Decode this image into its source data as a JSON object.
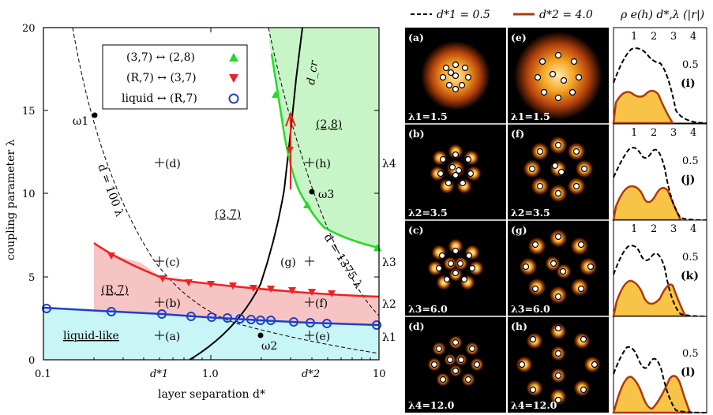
{
  "figure": {
    "phase_diagram": {
      "xlabel": "layer separation d*",
      "ylabel": "coupling parameter λ",
      "x_ticks": [
        "0.1",
        "1.0",
        "10"
      ],
      "x_marks": [
        "d*1",
        "d*2"
      ],
      "y_ticks": [
        "0",
        "5",
        "10",
        "15",
        "20"
      ],
      "right_lambdas": [
        "λ1",
        "λ2",
        "λ3",
        "λ4"
      ],
      "legend": [
        {
          "label": "(3,7) ↔ (2,8)",
          "color": "#22dd22",
          "marker": "triangle-up"
        },
        {
          "label": "(R,7) ↔ (3,7)",
          "color": "#ee2222",
          "marker": "triangle-down"
        },
        {
          "label": "liquid ↔ (R,7)",
          "color": "#1f3fcc",
          "marker": "circle"
        }
      ],
      "phase_labels": {
        "p28": "(2,8)",
        "p37": "(3,7)",
        "pR7": "(R,7)",
        "liquid": "liquid-like"
      },
      "curve_labels": {
        "d100": "d = 100 λ",
        "d1375": "d = 1375 λ",
        "dcr": "d_cr"
      },
      "omegas": [
        "ω1",
        "ω2",
        "ω3"
      ],
      "point_labels": [
        "(a)",
        "(b)",
        "(c)",
        "(d)",
        "(e)",
        "(f)",
        "(g)",
        "(h)"
      ]
    },
    "density_panels": {
      "header_dashed": "d*1 = 0.5",
      "header_solid": "d*2 = 4.0",
      "header_rho": "ρ e(h) d*,λ (|r|)",
      "left_column": [
        {
          "id": "(a)",
          "lambda": "λ1=1.5"
        },
        {
          "id": "(b)",
          "lambda": "λ2=3.5"
        },
        {
          "id": "(c)",
          "lambda": "λ3=6.0"
        },
        {
          "id": "(d)",
          "lambda": "λ4=12.0"
        }
      ],
      "right_column": [
        {
          "id": "(e)",
          "lambda": "λ1=1.5"
        },
        {
          "id": "(f)",
          "lambda": "λ2=3.5"
        },
        {
          "id": "(g)",
          "lambda": "λ3=6.0"
        },
        {
          "id": "(h)",
          "lambda": "λ4=12.0"
        }
      ],
      "profiles": [
        {
          "id": "(i)",
          "tick": "0.5"
        },
        {
          "id": "(j)",
          "tick": "0.5"
        },
        {
          "id": "(k)",
          "tick": "0.5"
        },
        {
          "id": "(l)",
          "tick": "0.5"
        }
      ],
      "profile_x_ticks": [
        "1",
        "2",
        "3",
        "4"
      ]
    },
    "colors": {
      "green": "#22dd22",
      "red": "#ee2222",
      "blue": "#1f3fcc",
      "green_fill": "#c8f5c8",
      "red_fill": "#f7c4c4",
      "cyan_fill": "#c8f5f5",
      "orange_fill": "#f7c447",
      "brown": "#b03a08"
    }
  }
}
